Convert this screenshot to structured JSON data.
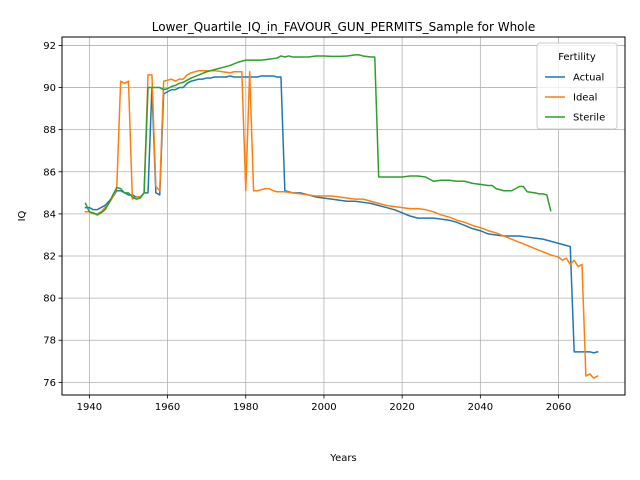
{
  "chart_data": {
    "type": "line",
    "title": "Lower_Quartile_IQ_in_FAVOUR_GUN_PERMITS_Sample for Whole",
    "xlabel": "Years",
    "ylabel": "IQ",
    "xlim": [
      1933,
      2077
    ],
    "ylim": [
      75.4,
      92.4
    ],
    "xticks": [
      1940,
      1960,
      1980,
      2000,
      2020,
      2040,
      2060
    ],
    "yticks": [
      76,
      78,
      80,
      82,
      84,
      86,
      88,
      90,
      92
    ],
    "grid": true,
    "legend": {
      "title": "Fertility",
      "placement": "top-right"
    },
    "series": [
      {
        "name": "Actual",
        "color": "#1f77b4",
        "points": [
          [
            1939,
            84.3
          ],
          [
            1940,
            84.3
          ],
          [
            1941,
            84.2
          ],
          [
            1942,
            84.2
          ],
          [
            1943,
            84.3
          ],
          [
            1944,
            84.4
          ],
          [
            1945,
            84.6
          ],
          [
            1946,
            84.8
          ],
          [
            1947,
            85.1
          ],
          [
            1948,
            85.1
          ],
          [
            1949,
            85.0
          ],
          [
            1950,
            84.9
          ],
          [
            1951,
            84.9
          ],
          [
            1952,
            84.8
          ],
          [
            1953,
            84.8
          ],
          [
            1954,
            85.0
          ],
          [
            1955,
            85.0
          ],
          [
            1956,
            90.0
          ],
          [
            1957,
            85.0
          ],
          [
            1958,
            84.9
          ],
          [
            1959,
            89.7
          ],
          [
            1960,
            89.8
          ],
          [
            1961,
            89.9
          ],
          [
            1962,
            89.9
          ],
          [
            1963,
            90.0
          ],
          [
            1964,
            90.0
          ],
          [
            1965,
            90.2
          ],
          [
            1966,
            90.3
          ],
          [
            1967,
            90.35
          ],
          [
            1968,
            90.4
          ],
          [
            1969,
            90.4
          ],
          [
            1970,
            90.45
          ],
          [
            1971,
            90.45
          ],
          [
            1972,
            90.5
          ],
          [
            1973,
            90.5
          ],
          [
            1974,
            90.5
          ],
          [
            1975,
            90.5
          ],
          [
            1976,
            90.55
          ],
          [
            1977,
            90.5
          ],
          [
            1978,
            90.5
          ],
          [
            1979,
            90.5
          ],
          [
            1980,
            90.5
          ],
          [
            1981,
            90.5
          ],
          [
            1982,
            90.5
          ],
          [
            1983,
            90.5
          ],
          [
            1984,
            90.55
          ],
          [
            1985,
            90.55
          ],
          [
            1986,
            90.55
          ],
          [
            1987,
            90.55
          ],
          [
            1988,
            90.5
          ],
          [
            1989,
            90.5
          ],
          [
            1990,
            85.1
          ],
          [
            1992,
            85.0
          ],
          [
            1994,
            85.0
          ],
          [
            1996,
            84.9
          ],
          [
            1998,
            84.8
          ],
          [
            2000,
            84.75
          ],
          [
            2002,
            84.7
          ],
          [
            2004,
            84.65
          ],
          [
            2006,
            84.6
          ],
          [
            2008,
            84.6
          ],
          [
            2010,
            84.55
          ],
          [
            2012,
            84.5
          ],
          [
            2014,
            84.4
          ],
          [
            2016,
            84.3
          ],
          [
            2018,
            84.2
          ],
          [
            2020,
            84.05
          ],
          [
            2022,
            83.9
          ],
          [
            2024,
            83.8
          ],
          [
            2026,
            83.8
          ],
          [
            2028,
            83.8
          ],
          [
            2030,
            83.75
          ],
          [
            2032,
            83.7
          ],
          [
            2034,
            83.6
          ],
          [
            2036,
            83.45
          ],
          [
            2038,
            83.3
          ],
          [
            2040,
            83.2
          ],
          [
            2042,
            83.05
          ],
          [
            2044,
            83.0
          ],
          [
            2046,
            82.95
          ],
          [
            2048,
            82.95
          ],
          [
            2050,
            82.95
          ],
          [
            2052,
            82.9
          ],
          [
            2054,
            82.85
          ],
          [
            2056,
            82.8
          ],
          [
            2058,
            82.7
          ],
          [
            2060,
            82.6
          ],
          [
            2062,
            82.5
          ],
          [
            2063,
            82.45
          ],
          [
            2064,
            77.45
          ],
          [
            2066,
            77.45
          ],
          [
            2068,
            77.45
          ],
          [
            2069,
            77.4
          ],
          [
            2070,
            77.45
          ]
        ]
      },
      {
        "name": "Ideal",
        "color": "#ff7f0e",
        "points": [
          [
            1939,
            84.1
          ],
          [
            1940,
            84.1
          ],
          [
            1941,
            84.0
          ],
          [
            1942,
            84.0
          ],
          [
            1943,
            84.1
          ],
          [
            1944,
            84.3
          ],
          [
            1945,
            84.5
          ],
          [
            1946,
            84.8
          ],
          [
            1947,
            85.2
          ],
          [
            1948,
            90.3
          ],
          [
            1949,
            90.2
          ],
          [
            1950,
            90.3
          ],
          [
            1951,
            84.7
          ],
          [
            1952,
            84.8
          ],
          [
            1953,
            84.8
          ],
          [
            1954,
            85.0
          ],
          [
            1955,
            90.6
          ],
          [
            1956,
            90.6
          ],
          [
            1957,
            85.3
          ],
          [
            1958,
            85.1
          ],
          [
            1959,
            90.3
          ],
          [
            1960,
            90.35
          ],
          [
            1961,
            90.4
          ],
          [
            1962,
            90.3
          ],
          [
            1963,
            90.4
          ],
          [
            1964,
            90.4
          ],
          [
            1965,
            90.6
          ],
          [
            1966,
            90.7
          ],
          [
            1967,
            90.75
          ],
          [
            1968,
            90.8
          ],
          [
            1969,
            90.8
          ],
          [
            1970,
            90.8
          ],
          [
            1972,
            90.8
          ],
          [
            1974,
            90.75
          ],
          [
            1976,
            90.7
          ],
          [
            1977,
            90.75
          ],
          [
            1978,
            90.75
          ],
          [
            1979,
            90.75
          ],
          [
            1980,
            85.1
          ],
          [
            1981,
            90.75
          ],
          [
            1982,
            85.1
          ],
          [
            1983,
            85.1
          ],
          [
            1984,
            85.15
          ],
          [
            1985,
            85.2
          ],
          [
            1986,
            85.2
          ],
          [
            1987,
            85.1
          ],
          [
            1988,
            85.05
          ],
          [
            1990,
            85.05
          ],
          [
            1992,
            85.0
          ],
          [
            1994,
            84.95
          ],
          [
            1996,
            84.9
          ],
          [
            1998,
            84.85
          ],
          [
            2000,
            84.85
          ],
          [
            2002,
            84.85
          ],
          [
            2004,
            84.8
          ],
          [
            2006,
            84.75
          ],
          [
            2008,
            84.7
          ],
          [
            2010,
            84.7
          ],
          [
            2012,
            84.6
          ],
          [
            2014,
            84.5
          ],
          [
            2016,
            84.4
          ],
          [
            2018,
            84.35
          ],
          [
            2020,
            84.3
          ],
          [
            2022,
            84.25
          ],
          [
            2024,
            84.25
          ],
          [
            2026,
            84.2
          ],
          [
            2028,
            84.1
          ],
          [
            2030,
            83.95
          ],
          [
            2032,
            83.85
          ],
          [
            2034,
            83.7
          ],
          [
            2036,
            83.6
          ],
          [
            2038,
            83.45
          ],
          [
            2040,
            83.35
          ],
          [
            2042,
            83.2
          ],
          [
            2044,
            83.1
          ],
          [
            2046,
            82.95
          ],
          [
            2048,
            82.8
          ],
          [
            2050,
            82.65
          ],
          [
            2052,
            82.5
          ],
          [
            2054,
            82.35
          ],
          [
            2056,
            82.2
          ],
          [
            2058,
            82.05
          ],
          [
            2060,
            81.95
          ],
          [
            2061,
            81.8
          ],
          [
            2062,
            81.9
          ],
          [
            2063,
            81.6
          ],
          [
            2064,
            81.8
          ],
          [
            2065,
            81.5
          ],
          [
            2066,
            81.6
          ],
          [
            2067,
            76.3
          ],
          [
            2068,
            76.4
          ],
          [
            2069,
            76.2
          ],
          [
            2070,
            76.3
          ]
        ]
      },
      {
        "name": "Sterile",
        "color": "#2ca02c",
        "points": [
          [
            1939,
            84.5
          ],
          [
            1940,
            84.1
          ],
          [
            1941,
            84.05
          ],
          [
            1942,
            83.95
          ],
          [
            1943,
            84.05
          ],
          [
            1944,
            84.2
          ],
          [
            1945,
            84.5
          ],
          [
            1946,
            84.9
          ],
          [
            1947,
            85.25
          ],
          [
            1948,
            85.2
          ],
          [
            1949,
            85.0
          ],
          [
            1950,
            85.0
          ],
          [
            1951,
            84.8
          ],
          [
            1952,
            84.7
          ],
          [
            1953,
            84.75
          ],
          [
            1954,
            85.0
          ],
          [
            1955,
            90.0
          ],
          [
            1956,
            90.0
          ],
          [
            1958,
            90.0
          ],
          [
            1959,
            89.9
          ],
          [
            1960,
            89.95
          ],
          [
            1961,
            90.05
          ],
          [
            1962,
            90.1
          ],
          [
            1963,
            90.2
          ],
          [
            1964,
            90.25
          ],
          [
            1965,
            90.35
          ],
          [
            1966,
            90.45
          ],
          [
            1968,
            90.6
          ],
          [
            1970,
            90.75
          ],
          [
            1972,
            90.85
          ],
          [
            1974,
            90.95
          ],
          [
            1976,
            91.05
          ],
          [
            1978,
            91.2
          ],
          [
            1980,
            91.3
          ],
          [
            1982,
            91.3
          ],
          [
            1984,
            91.3
          ],
          [
            1986,
            91.35
          ],
          [
            1988,
            91.4
          ],
          [
            1989,
            91.5
          ],
          [
            1990,
            91.45
          ],
          [
            1991,
            91.5
          ],
          [
            1992,
            91.45
          ],
          [
            1994,
            91.45
          ],
          [
            1996,
            91.45
          ],
          [
            1998,
            91.5
          ],
          [
            2000,
            91.5
          ],
          [
            2002,
            91.48
          ],
          [
            2004,
            91.48
          ],
          [
            2006,
            91.5
          ],
          [
            2008,
            91.55
          ],
          [
            2009,
            91.55
          ],
          [
            2010,
            91.5
          ],
          [
            2012,
            91.45
          ],
          [
            2013,
            91.45
          ],
          [
            2014,
            85.75
          ],
          [
            2016,
            85.75
          ],
          [
            2018,
            85.75
          ],
          [
            2020,
            85.75
          ],
          [
            2022,
            85.8
          ],
          [
            2024,
            85.8
          ],
          [
            2026,
            85.75
          ],
          [
            2027,
            85.65
          ],
          [
            2028,
            85.55
          ],
          [
            2030,
            85.6
          ],
          [
            2032,
            85.6
          ],
          [
            2034,
            85.55
          ],
          [
            2036,
            85.55
          ],
          [
            2038,
            85.45
          ],
          [
            2040,
            85.4
          ],
          [
            2042,
            85.35
          ],
          [
            2043,
            85.35
          ],
          [
            2044,
            85.2
          ],
          [
            2046,
            85.1
          ],
          [
            2048,
            85.1
          ],
          [
            2050,
            85.3
          ],
          [
            2051,
            85.3
          ],
          [
            2052,
            85.05
          ],
          [
            2054,
            85.0
          ],
          [
            2055,
            84.95
          ],
          [
            2056,
            84.95
          ],
          [
            2057,
            84.9
          ],
          [
            2058,
            84.15
          ]
        ]
      }
    ]
  }
}
